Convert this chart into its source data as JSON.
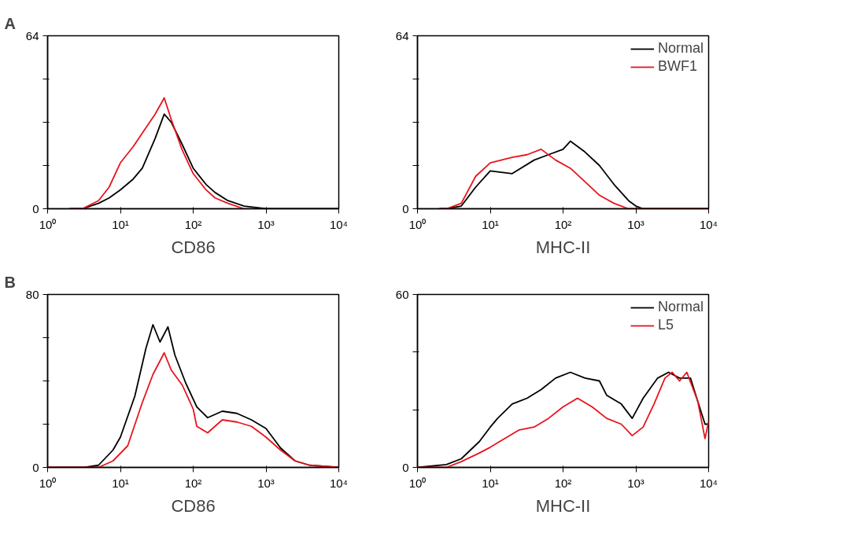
{
  "chart_data": [
    {
      "type": "line",
      "annotations": [
        "A"
      ],
      "xlabel": "CD86",
      "log": "x",
      "grid": false,
      "xlim": [
        1,
        10000
      ],
      "ylim": [
        0,
        64
      ],
      "xticks": [
        {
          "value": 1,
          "label": "10⁰"
        },
        {
          "value": 10,
          "label": "10¹"
        },
        {
          "value": 100,
          "label": "10²"
        },
        {
          "value": 1000,
          "label": "10³"
        },
        {
          "value": 10000,
          "label": "10⁴"
        }
      ],
      "yticks": [
        0,
        {
          "value": 16,
          "label": null
        },
        {
          "value": 32,
          "label": null
        },
        {
          "value": 48,
          "label": null
        },
        64
      ],
      "series": [
        {
          "color": "#000000",
          "x": [
            2,
            3,
            5,
            7,
            10,
            15,
            20,
            30,
            40,
            50,
            70,
            100,
            150,
            200,
            300,
            500,
            1000,
            2000,
            10000
          ],
          "values": [
            0,
            0,
            2,
            4,
            7,
            11,
            15,
            26,
            35,
            32,
            24,
            15,
            9,
            6,
            3,
            1,
            0,
            0,
            0
          ]
        },
        {
          "color": "#e8141c",
          "x": [
            2,
            3,
            5,
            7,
            10,
            15,
            20,
            30,
            40,
            50,
            70,
            100,
            150,
            200,
            300,
            500
          ],
          "values": [
            0,
            0,
            3,
            8,
            17,
            23,
            28,
            35,
            41,
            33,
            22,
            13,
            7,
            4,
            2,
            0
          ]
        }
      ]
    },
    {
      "type": "line",
      "xlabel": "MHC-II",
      "log": "x",
      "grid": false,
      "legend": "top right",
      "xlim": [
        1,
        10000
      ],
      "ylim": [
        0,
        64
      ],
      "xticks": [
        {
          "value": 1,
          "label": "10⁰"
        },
        {
          "value": 10,
          "label": "10¹"
        },
        {
          "value": 100,
          "label": "10²"
        },
        {
          "value": 1000,
          "label": "10³"
        },
        {
          "value": 10000,
          "label": "10⁴"
        }
      ],
      "yticks": [
        0,
        {
          "value": 16,
          "label": null
        },
        {
          "value": 32,
          "label": null
        },
        {
          "value": 48,
          "label": null
        },
        64
      ],
      "series": [
        {
          "name": "Normal",
          "color": "#000000",
          "x": [
            2,
            2.5,
            4,
            6.3,
            10,
            20,
            40,
            63,
            100,
            126,
            200,
            316,
            501,
            794,
            1000,
            1259,
            10000
          ],
          "values": [
            0,
            0,
            1,
            8,
            14,
            13,
            18,
            20,
            22,
            25,
            21,
            16,
            9,
            3,
            1,
            0,
            0
          ]
        },
        {
          "name": "BWF1",
          "color": "#e8141c",
          "x": [
            2,
            2.5,
            4,
            6.3,
            10,
            20,
            32,
            50,
            79,
            126,
            200,
            316,
            501,
            794,
            1000,
            10000
          ],
          "values": [
            0,
            0,
            2,
            12,
            17,
            19,
            20,
            22,
            18,
            15,
            10,
            5,
            2,
            0,
            0,
            0
          ]
        }
      ]
    },
    {
      "type": "line",
      "annotations": [
        "B"
      ],
      "xlabel": "CD86",
      "log": "x",
      "grid": false,
      "xlim": [
        1,
        10000
      ],
      "ylim": [
        0,
        80
      ],
      "xticks": [
        {
          "value": 1,
          "label": "10⁰"
        },
        {
          "value": 10,
          "label": "10¹"
        },
        {
          "value": 100,
          "label": "10²"
        },
        {
          "value": 1000,
          "label": "10³"
        },
        {
          "value": 10000,
          "label": "10⁴"
        }
      ],
      "yticks": [
        0,
        {
          "value": 20,
          "label": null
        },
        {
          "value": 40,
          "label": null
        },
        {
          "value": 60,
          "label": null
        },
        80
      ],
      "series": [
        {
          "color": "#000000",
          "x": [
            1,
            3.2,
            5,
            7.9,
            10,
            15.8,
            22.4,
            28,
            35,
            45,
            56,
            79,
            112,
            158,
            251,
            398,
            631,
            1000,
            1585,
            2512,
            3981,
            10000
          ],
          "values": [
            0,
            0,
            1,
            8,
            14,
            33,
            55,
            66,
            58,
            65,
            52,
            39,
            28,
            23,
            26,
            25,
            22,
            18,
            9,
            3,
            1,
            0
          ]
        },
        {
          "color": "#e8141c",
          "x": [
            1,
            5,
            7.9,
            12.6,
            20,
            28,
            40,
            50,
            71,
            100,
            112,
            158,
            251,
            398,
            631,
            1000,
            1585,
            2512,
            3981,
            10000
          ],
          "values": [
            0,
            0,
            3,
            10,
            30,
            43,
            53,
            45,
            38,
            27,
            19,
            16,
            22,
            21,
            19,
            14,
            8,
            3,
            1,
            0
          ]
        }
      ]
    },
    {
      "type": "line",
      "xlabel": "MHC-II",
      "log": "x",
      "grid": false,
      "legend": "top right",
      "xlim": [
        1,
        10000
      ],
      "ylim": [
        0,
        60
      ],
      "xticks": [
        {
          "value": 1,
          "label": "10⁰"
        },
        {
          "value": 10,
          "label": "10¹"
        },
        {
          "value": 100,
          "label": "10²"
        },
        {
          "value": 1000,
          "label": "10³"
        },
        {
          "value": 10000,
          "label": "10⁴"
        }
      ],
      "yticks": [
        0,
        {
          "value": 20,
          "label": null
        },
        {
          "value": 40,
          "label": null
        },
        60
      ],
      "series": [
        {
          "name": "Normal",
          "color": "#000000",
          "x": [
            1,
            2.5,
            4,
            7.1,
            10,
            12.6,
            20,
            32,
            50,
            79,
            126,
            200,
            316,
            398,
            631,
            891,
            1259,
            1995,
            2818,
            3981,
            5623,
            7079,
            8913,
            10000
          ],
          "values": [
            0,
            1,
            3,
            9,
            14,
            17,
            22,
            24,
            27,
            31,
            33,
            31,
            30,
            25,
            22,
            17,
            24,
            31,
            33,
            31,
            31,
            23,
            15,
            15
          ]
        },
        {
          "name": "L5",
          "color": "#e8141c",
          "x": [
            1,
            2.5,
            4,
            7.1,
            10,
            15.8,
            25,
            40,
            63,
            100,
            158,
            251,
            398,
            631,
            891,
            1259,
            1778,
            2512,
            3162,
            3981,
            5012,
            7079,
            8913,
            10000
          ],
          "values": [
            0,
            0,
            2,
            5,
            7,
            10,
            13,
            14,
            17,
            21,
            24,
            21,
            17,
            15,
            11,
            14,
            22,
            31,
            33,
            30,
            33,
            23,
            10,
            16
          ]
        }
      ]
    }
  ]
}
